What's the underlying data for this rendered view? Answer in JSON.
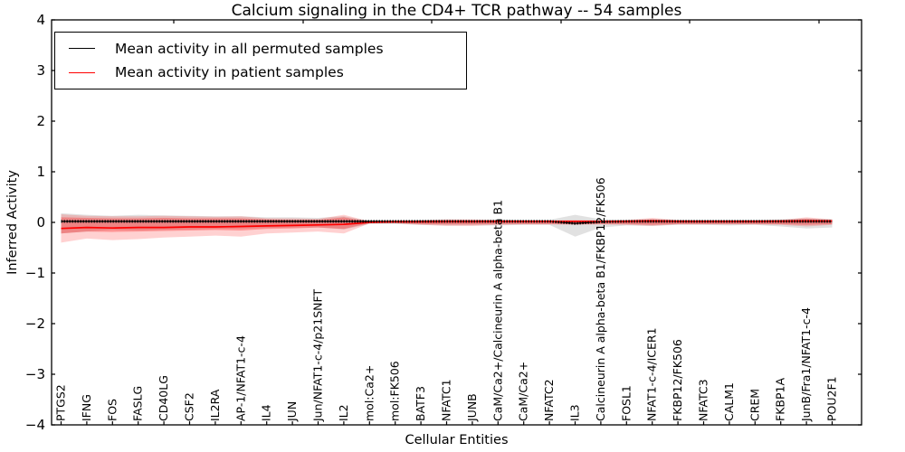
{
  "title": "Calcium signaling in the CD4+ TCR pathway -- 54 samples",
  "axes": {
    "ylabel": "Inferred Activity",
    "xlabel": "Cellular Entities",
    "yticks": [
      4,
      3,
      2,
      1,
      0,
      -1,
      -2,
      -3,
      -4
    ],
    "ylim": [
      -4,
      4
    ]
  },
  "legend": {
    "items": [
      {
        "label": "Mean activity in all permuted samples",
        "color": "#000000"
      },
      {
        "label": "Mean activity in patient samples",
        "color": "#ff0000"
      }
    ]
  },
  "colors": {
    "permuted_line": "#000000",
    "patient_line": "#ff0000",
    "permuted_band": "rgba(120,120,120,0.22)",
    "patient_band_outer": "rgba(255,0,0,0.18)",
    "patient_band_inner": "rgba(255,0,0,0.28)"
  },
  "chart_data": {
    "type": "line",
    "title": "Calcium signaling in the CD4+ TCR pathway -- 54 samples",
    "xlabel": "Cellular Entities",
    "ylabel": "Inferred Activity",
    "ylim": [
      -4,
      4
    ],
    "yticks": [
      4,
      3,
      2,
      1,
      0,
      -1,
      -2,
      -3,
      -4
    ],
    "grid": false,
    "legend_position": "upper left",
    "categories": [
      "PTGS2",
      "IFNG",
      "FOS",
      "FASLG",
      "CD40LG",
      "CSF2",
      "IL2RA",
      "AP-1/NFAT1-c-4",
      "IL4",
      "JUN",
      "Jun/NFAT1-c-4/p21SNFT",
      "IL2",
      "mol:Ca2+",
      "mol:FK506",
      "BATF3",
      "NFATC1",
      "JUNB",
      "CaM/Ca2+/Calcineurin A alpha-beta B1",
      "CaM/Ca2+",
      "NFATC2",
      "IL3",
      "Calcineurin A alpha-beta B1/FKBP12/FK506",
      "FOSL1",
      "NFAT1-c-4/ICER1",
      "FKBP12/FK506",
      "NFATC3",
      "CALM1",
      "CREM",
      "FKBP1A",
      "JunB/Fra1/NFAT1-c-4",
      "POU2F1"
    ],
    "series": [
      {
        "name": "Mean activity in all permuted samples",
        "color": "#000000",
        "values": [
          0.02,
          0.02,
          0.02,
          0.02,
          0.02,
          0.02,
          0.02,
          0.02,
          0.02,
          0.02,
          0.02,
          0.02,
          0.02,
          0.02,
          0.02,
          0.02,
          0.02,
          0.02,
          0.02,
          0.02,
          -0.02,
          0.01,
          0.02,
          0.02,
          0.02,
          0.02,
          0.02,
          0.02,
          0.02,
          0.02,
          0.02
        ]
      },
      {
        "name": "Mean activity in patient samples",
        "color": "#ff0000",
        "values": [
          -0.12,
          -0.1,
          -0.11,
          -0.1,
          -0.1,
          -0.09,
          -0.09,
          -0.08,
          -0.07,
          -0.06,
          -0.05,
          -0.04,
          0.0,
          0.01,
          0.01,
          0.015,
          0.015,
          0.02,
          0.02,
          0.02,
          0.02,
          0.02,
          0.02,
          0.03,
          0.02,
          0.02,
          0.02,
          0.02,
          0.025,
          0.03,
          0.03
        ]
      }
    ],
    "bands": [
      {
        "name": "permuted-samples-range",
        "upper": [
          0.18,
          0.15,
          0.13,
          0.15,
          0.14,
          0.13,
          0.12,
          0.12,
          0.1,
          0.1,
          0.09,
          0.12,
          0.03,
          0.03,
          0.05,
          0.06,
          0.05,
          0.06,
          0.05,
          0.05,
          0.15,
          0.06,
          0.05,
          0.06,
          0.05,
          0.05,
          0.05,
          0.05,
          0.06,
          0.08,
          0.06
        ],
        "lower": [
          -0.22,
          -0.18,
          -0.15,
          -0.16,
          -0.15,
          -0.14,
          -0.13,
          -0.12,
          -0.11,
          -0.1,
          -0.1,
          -0.14,
          -0.03,
          -0.03,
          -0.05,
          -0.06,
          -0.06,
          -0.06,
          -0.05,
          -0.05,
          -0.28,
          -0.1,
          -0.06,
          -0.07,
          -0.05,
          -0.05,
          -0.06,
          -0.05,
          -0.08,
          -0.12,
          -0.1
        ]
      },
      {
        "name": "patient-samples-range-outer",
        "upper": [
          0.16,
          0.13,
          0.12,
          0.12,
          0.13,
          0.12,
          0.11,
          0.12,
          0.08,
          0.08,
          0.07,
          0.15,
          0.02,
          0.02,
          0.04,
          0.06,
          0.06,
          0.05,
          0.04,
          0.04,
          0.05,
          0.04,
          0.05,
          0.09,
          0.05,
          0.04,
          0.04,
          0.04,
          0.05,
          0.1,
          0.06
        ],
        "lower": [
          -0.4,
          -0.32,
          -0.35,
          -0.33,
          -0.3,
          -0.28,
          -0.26,
          -0.28,
          -0.22,
          -0.2,
          -0.18,
          -0.22,
          -0.02,
          -0.02,
          -0.05,
          -0.07,
          -0.07,
          -0.05,
          -0.04,
          -0.04,
          -0.05,
          -0.04,
          -0.05,
          -0.07,
          -0.04,
          -0.04,
          -0.04,
          -0.04,
          -0.05,
          -0.08,
          -0.05
        ]
      },
      {
        "name": "patient-samples-range-inner",
        "upper": [
          0.1,
          0.09,
          0.08,
          0.08,
          0.09,
          0.08,
          0.08,
          0.08,
          0.06,
          0.05,
          0.05,
          0.1,
          0.015,
          0.015,
          0.03,
          0.04,
          0.04,
          0.03,
          0.03,
          0.03,
          0.03,
          0.03,
          0.03,
          0.06,
          0.03,
          0.03,
          0.03,
          0.03,
          0.035,
          0.07,
          0.04
        ],
        "lower": [
          -0.22,
          -0.18,
          -0.19,
          -0.18,
          -0.17,
          -0.16,
          -0.15,
          -0.16,
          -0.13,
          -0.12,
          -0.1,
          -0.13,
          -0.015,
          -0.015,
          -0.03,
          -0.04,
          -0.04,
          -0.03,
          -0.03,
          -0.03,
          -0.03,
          -0.03,
          -0.03,
          -0.05,
          -0.03,
          -0.03,
          -0.03,
          -0.03,
          -0.035,
          -0.05,
          -0.035
        ]
      }
    ]
  }
}
